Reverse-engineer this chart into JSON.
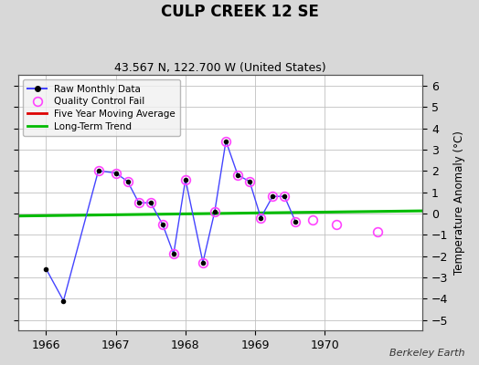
{
  "title": "CULP CREEK 12 SE",
  "subtitle": "43.567 N, 122.700 W (United States)",
  "ylabel": "Temperature Anomaly (°C)",
  "attribution": "Berkeley Earth",
  "ylim": [
    -5.5,
    6.5
  ],
  "xlim": [
    1965.6,
    1971.4
  ],
  "yticks": [
    -5,
    -4,
    -3,
    -2,
    -1,
    0,
    1,
    2,
    3,
    4,
    5,
    6
  ],
  "xticks": [
    1966,
    1967,
    1968,
    1969,
    1970
  ],
  "background_color": "#d8d8d8",
  "plot_bg_color": "#ffffff",
  "raw_data_x": [
    1966.0,
    1966.25,
    1966.75,
    1967.0,
    1967.17,
    1967.33,
    1967.5,
    1967.67,
    1967.83,
    1968.0,
    1968.25,
    1968.42,
    1968.58,
    1968.75,
    1968.92,
    1969.08,
    1969.25,
    1969.42,
    1969.58
  ],
  "raw_data_y": [
    -2.6,
    -4.1,
    2.0,
    1.9,
    1.5,
    0.5,
    0.5,
    -0.5,
    -1.9,
    1.6,
    -2.3,
    0.1,
    3.4,
    1.8,
    1.5,
    -0.2,
    0.8,
    0.8,
    -0.4
  ],
  "qc_fail_x": [
    1966.75,
    1967.0,
    1967.17,
    1967.33,
    1967.5,
    1967.67,
    1967.83,
    1968.0,
    1968.25,
    1968.42,
    1968.58,
    1968.75,
    1968.92,
    1969.08,
    1969.25,
    1969.42,
    1969.58,
    1969.83,
    1970.17,
    1970.75
  ],
  "qc_fail_y": [
    2.0,
    1.9,
    1.5,
    0.5,
    0.5,
    -0.5,
    -1.9,
    1.6,
    -2.3,
    0.1,
    3.4,
    1.8,
    1.5,
    -0.2,
    0.8,
    0.8,
    -0.4,
    -0.3,
    -0.5,
    -0.85
  ],
  "trend_x": [
    1965.6,
    1971.4
  ],
  "trend_y": [
    -0.12,
    0.12
  ],
  "raw_color": "#4444ff",
  "raw_marker_color": "#000000",
  "qc_color": "#ff44ff",
  "trend_color": "#00bb00",
  "mavg_color": "#dd0000",
  "grid_color": "#c0c0c0",
  "legend_bg": "#f0f0f0"
}
